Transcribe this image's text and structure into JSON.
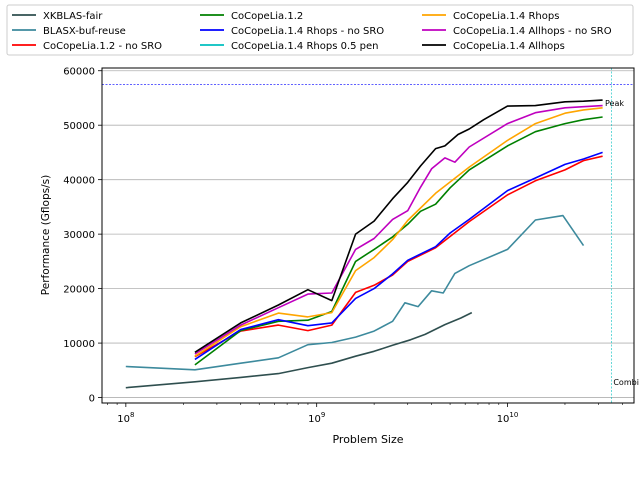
{
  "chart_data": {
    "type": "line",
    "xlabel": "Problem Size",
    "ylabel": "Performance (Gflops/s)",
    "xscale": "log",
    "xlim": [
      75000000,
      46000000000
    ],
    "ylim": [
      -1000,
      60500
    ],
    "x_ticks": [
      {
        "value": 100000000,
        "base": "10",
        "exp": "8"
      },
      {
        "value": 1000000000,
        "base": "10",
        "exp": "9"
      },
      {
        "value": 10000000000,
        "base": "10",
        "exp": "10"
      }
    ],
    "y_ticks": [
      0,
      10000,
      20000,
      30000,
      40000,
      50000,
      60000
    ],
    "grid": "horizontal",
    "legend_position": "top (above plot)",
    "peak": {
      "value": 57500,
      "label": "Peak",
      "color": "#0000ff"
    },
    "combined": {
      "x": 35000000000,
      "label": "Combi",
      "color": "#00bfbf"
    },
    "series": [
      {
        "name": "XKBLAS-fair",
        "color": "#2f4f4f",
        "points": [
          [
            100000000,
            1800
          ],
          [
            230000000,
            2900
          ],
          [
            400000000,
            3700
          ],
          [
            630000000,
            4400
          ],
          [
            900000000,
            5500
          ],
          [
            1200000000,
            6300
          ],
          [
            1600000000,
            7600
          ],
          [
            2000000000,
            8500
          ],
          [
            2500000000,
            9600
          ],
          [
            3100000000,
            10600
          ],
          [
            3700000000,
            11600
          ],
          [
            4700000000,
            13400
          ],
          [
            5700000000,
            14600
          ],
          [
            6500000000,
            15600
          ]
        ]
      },
      {
        "name": "BLASX-buf-reuse",
        "color": "#3d8a9d",
        "points": [
          [
            100000000,
            5700
          ],
          [
            230000000,
            5100
          ],
          [
            400000000,
            6300
          ],
          [
            630000000,
            7300
          ],
          [
            900000000,
            9700
          ],
          [
            1200000000,
            10100
          ],
          [
            1600000000,
            11100
          ],
          [
            2000000000,
            12200
          ],
          [
            2500000000,
            14000
          ],
          [
            2900000000,
            17400
          ],
          [
            3400000000,
            16700
          ],
          [
            4000000000,
            19600
          ],
          [
            4600000000,
            19200
          ],
          [
            5300000000,
            22800
          ],
          [
            6300000000,
            24200
          ],
          [
            10000000000,
            27200
          ],
          [
            14000000000,
            32600
          ],
          [
            19500000000,
            33400
          ],
          [
            25000000000,
            27900
          ]
        ]
      },
      {
        "name": "CoCopeLia.1.2 - no SRO",
        "color": "#ff0000",
        "points": [
          [
            230000000,
            7500
          ],
          [
            400000000,
            12200
          ],
          [
            630000000,
            13300
          ],
          [
            900000000,
            12300
          ],
          [
            1200000000,
            13300
          ],
          [
            1600000000,
            19300
          ],
          [
            2000000000,
            20600
          ],
          [
            2500000000,
            22500
          ],
          [
            3000000000,
            25000
          ],
          [
            4200000000,
            27500
          ],
          [
            6300000000,
            32300
          ],
          [
            10000000000,
            37200
          ],
          [
            14000000000,
            39800
          ],
          [
            20000000000,
            41800
          ],
          [
            25000000000,
            43500
          ],
          [
            31500000000,
            44300
          ]
        ]
      },
      {
        "name": "CoCopeLia.1.2",
        "color": "#008000",
        "points": [
          [
            230000000,
            6000
          ],
          [
            400000000,
            12300
          ],
          [
            630000000,
            14000
          ],
          [
            900000000,
            14200
          ],
          [
            1200000000,
            15800
          ],
          [
            1600000000,
            25000
          ],
          [
            2000000000,
            27200
          ],
          [
            2500000000,
            29500
          ],
          [
            3000000000,
            31800
          ],
          [
            3500000000,
            34200
          ],
          [
            4200000000,
            35500
          ],
          [
            5000000000,
            38500
          ],
          [
            6300000000,
            41800
          ],
          [
            10000000000,
            46200
          ],
          [
            14000000000,
            48800
          ],
          [
            20000000000,
            50300
          ],
          [
            25000000000,
            51000
          ],
          [
            31500000000,
            51500
          ]
        ]
      },
      {
        "name": "CoCopeLia.1.4 Rhops - no SRO",
        "color": "#0000ff",
        "points": [
          [
            230000000,
            7000
          ],
          [
            400000000,
            12500
          ],
          [
            630000000,
            14300
          ],
          [
            900000000,
            13200
          ],
          [
            1200000000,
            13700
          ],
          [
            1600000000,
            18200
          ],
          [
            2000000000,
            20000
          ],
          [
            2500000000,
            22700
          ],
          [
            3000000000,
            25200
          ],
          [
            4200000000,
            27700
          ],
          [
            5000000000,
            30200
          ],
          [
            6300000000,
            32700
          ],
          [
            10000000000,
            38000
          ],
          [
            14000000000,
            40300
          ],
          [
            20000000000,
            42800
          ],
          [
            25000000000,
            43800
          ],
          [
            31500000000,
            45000
          ]
        ]
      },
      {
        "name": "CoCopeLia.1.4 Rhops 0.5 pen",
        "color": "#00bfbf",
        "points": []
      },
      {
        "name": "CoCopeLia.1.4 Rhops",
        "color": "#ffa500",
        "points": [
          [
            230000000,
            7600
          ],
          [
            400000000,
            13000
          ],
          [
            630000000,
            15500
          ],
          [
            900000000,
            14800
          ],
          [
            1200000000,
            15600
          ],
          [
            1600000000,
            23300
          ],
          [
            2000000000,
            25700
          ],
          [
            2500000000,
            29000
          ],
          [
            3000000000,
            32500
          ],
          [
            4200000000,
            37500
          ],
          [
            6300000000,
            42300
          ],
          [
            10000000000,
            47200
          ],
          [
            14000000000,
            50300
          ],
          [
            20000000000,
            52200
          ],
          [
            25000000000,
            52800
          ],
          [
            31500000000,
            53200
          ]
        ]
      },
      {
        "name": "CoCopeLia.1.4 Allhops - no SRO",
        "color": "#bf00bf",
        "points": [
          [
            230000000,
            8000
          ],
          [
            400000000,
            13300
          ],
          [
            630000000,
            16500
          ],
          [
            900000000,
            19000
          ],
          [
            1200000000,
            19200
          ],
          [
            1600000000,
            27200
          ],
          [
            2000000000,
            29200
          ],
          [
            2500000000,
            32700
          ],
          [
            3000000000,
            34300
          ],
          [
            3500000000,
            38600
          ],
          [
            4000000000,
            42000
          ],
          [
            4700000000,
            44000
          ],
          [
            5300000000,
            43200
          ],
          [
            6300000000,
            46000
          ],
          [
            10000000000,
            50300
          ],
          [
            14000000000,
            52300
          ],
          [
            20000000000,
            53200
          ],
          [
            25000000000,
            53400
          ],
          [
            31500000000,
            53600
          ]
        ]
      },
      {
        "name": "CoCopeLia.1.4 Allhops",
        "color": "#000000",
        "points": [
          [
            230000000,
            8300
          ],
          [
            400000000,
            13700
          ],
          [
            630000000,
            17000
          ],
          [
            900000000,
            19800
          ],
          [
            1200000000,
            17800
          ],
          [
            1600000000,
            30000
          ],
          [
            2000000000,
            32400
          ],
          [
            2500000000,
            36500
          ],
          [
            3000000000,
            39500
          ],
          [
            3500000000,
            42500
          ],
          [
            4200000000,
            45700
          ],
          [
            4700000000,
            46200
          ],
          [
            5500000000,
            48300
          ],
          [
            6300000000,
            49300
          ],
          [
            7500000000,
            51000
          ],
          [
            10000000000,
            53500
          ],
          [
            14000000000,
            53600
          ],
          [
            20000000000,
            54300
          ],
          [
            25000000000,
            54400
          ],
          [
            31500000000,
            54600
          ]
        ]
      }
    ]
  }
}
